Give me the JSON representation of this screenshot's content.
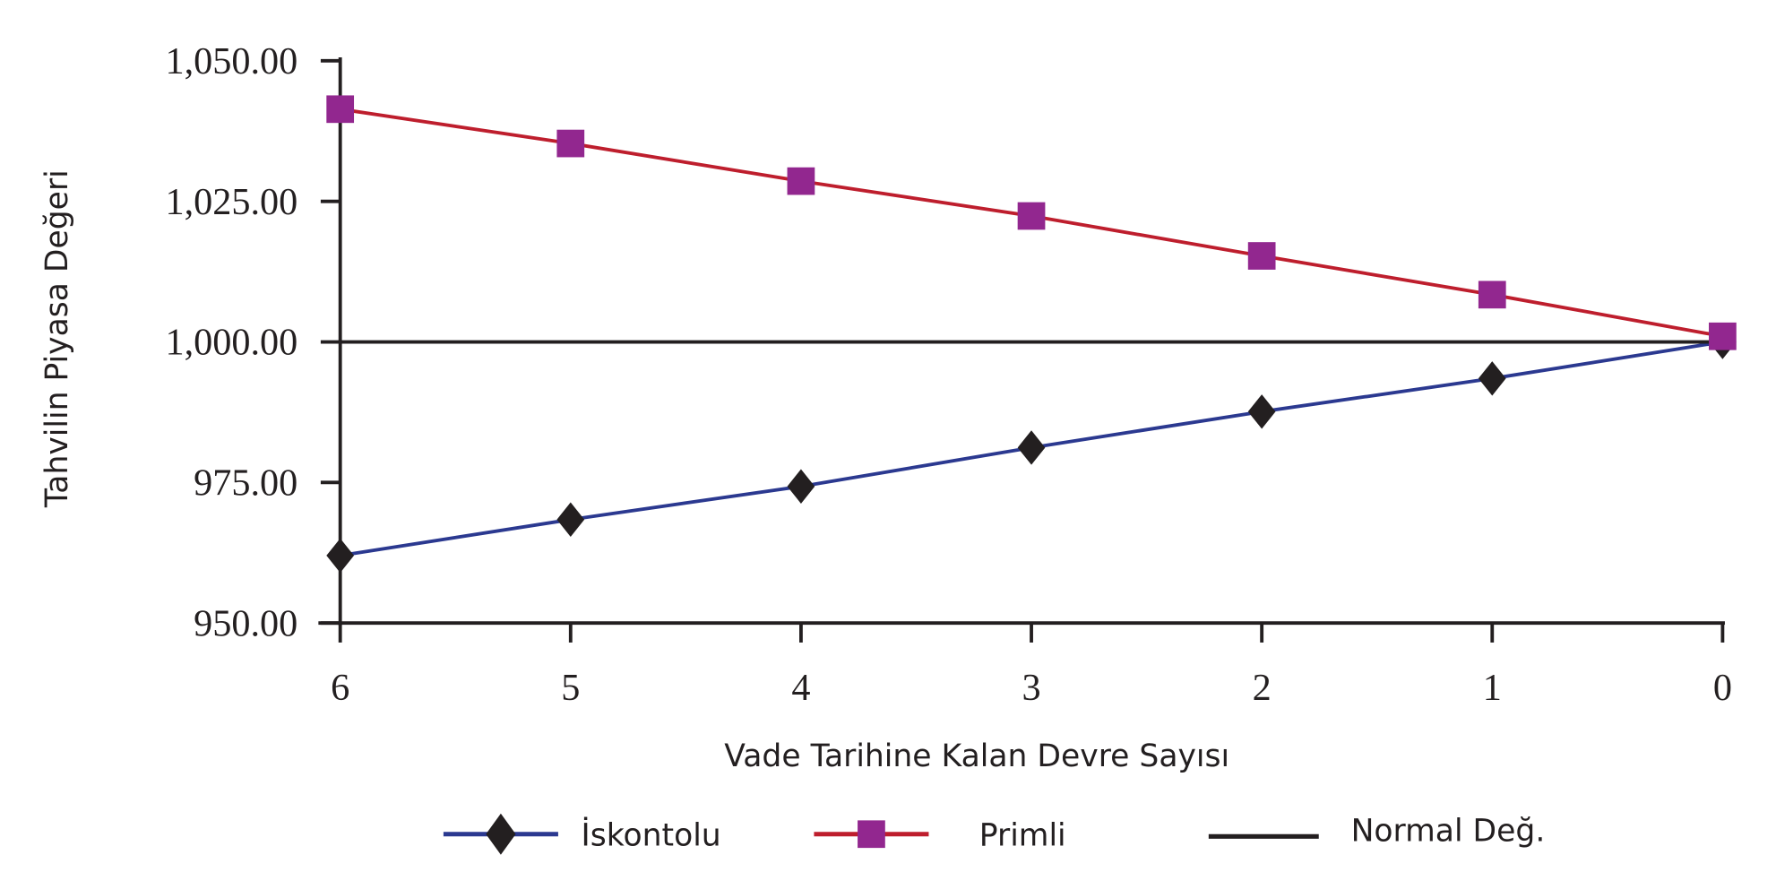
{
  "chart_data": {
    "type": "line",
    "title": "",
    "xlabel": "Vade Tarihine Kalan Devre Sayısı",
    "ylabel": "Tahvilin Piyasa Değeri",
    "x": [
      6,
      5,
      4,
      3,
      2,
      1,
      0
    ],
    "x_tick_labels": [
      "6",
      "5",
      "4",
      "3",
      "2",
      "1",
      "0"
    ],
    "y_tick_labels": [
      "1,050.00",
      "1,025.00",
      "1,000.00",
      "975.00",
      "950.00"
    ],
    "y_ticks": [
      1050,
      1025,
      1000,
      975,
      950
    ],
    "ylim": [
      950,
      1050
    ],
    "grid": false,
    "legend_position": "bottom",
    "series": [
      {
        "name": "İskontolu",
        "color": "#2b3990",
        "marker": "diamond",
        "marker_color": "#231f20",
        "values": [
          962.0,
          968.4,
          974.3,
          981.2,
          987.6,
          993.5,
          1000.0
        ]
      },
      {
        "name": "Primli",
        "color": "#be1e2d",
        "marker": "square",
        "marker_color": "#92278f",
        "values": [
          1041.4,
          1035.3,
          1028.6,
          1022.4,
          1015.3,
          1008.4,
          1001.0
        ]
      },
      {
        "name": "Normal Değ.",
        "color": "#231f20",
        "marker": "none",
        "values": [
          1000,
          1000,
          1000,
          1000,
          1000,
          1000,
          1000
        ]
      }
    ]
  }
}
